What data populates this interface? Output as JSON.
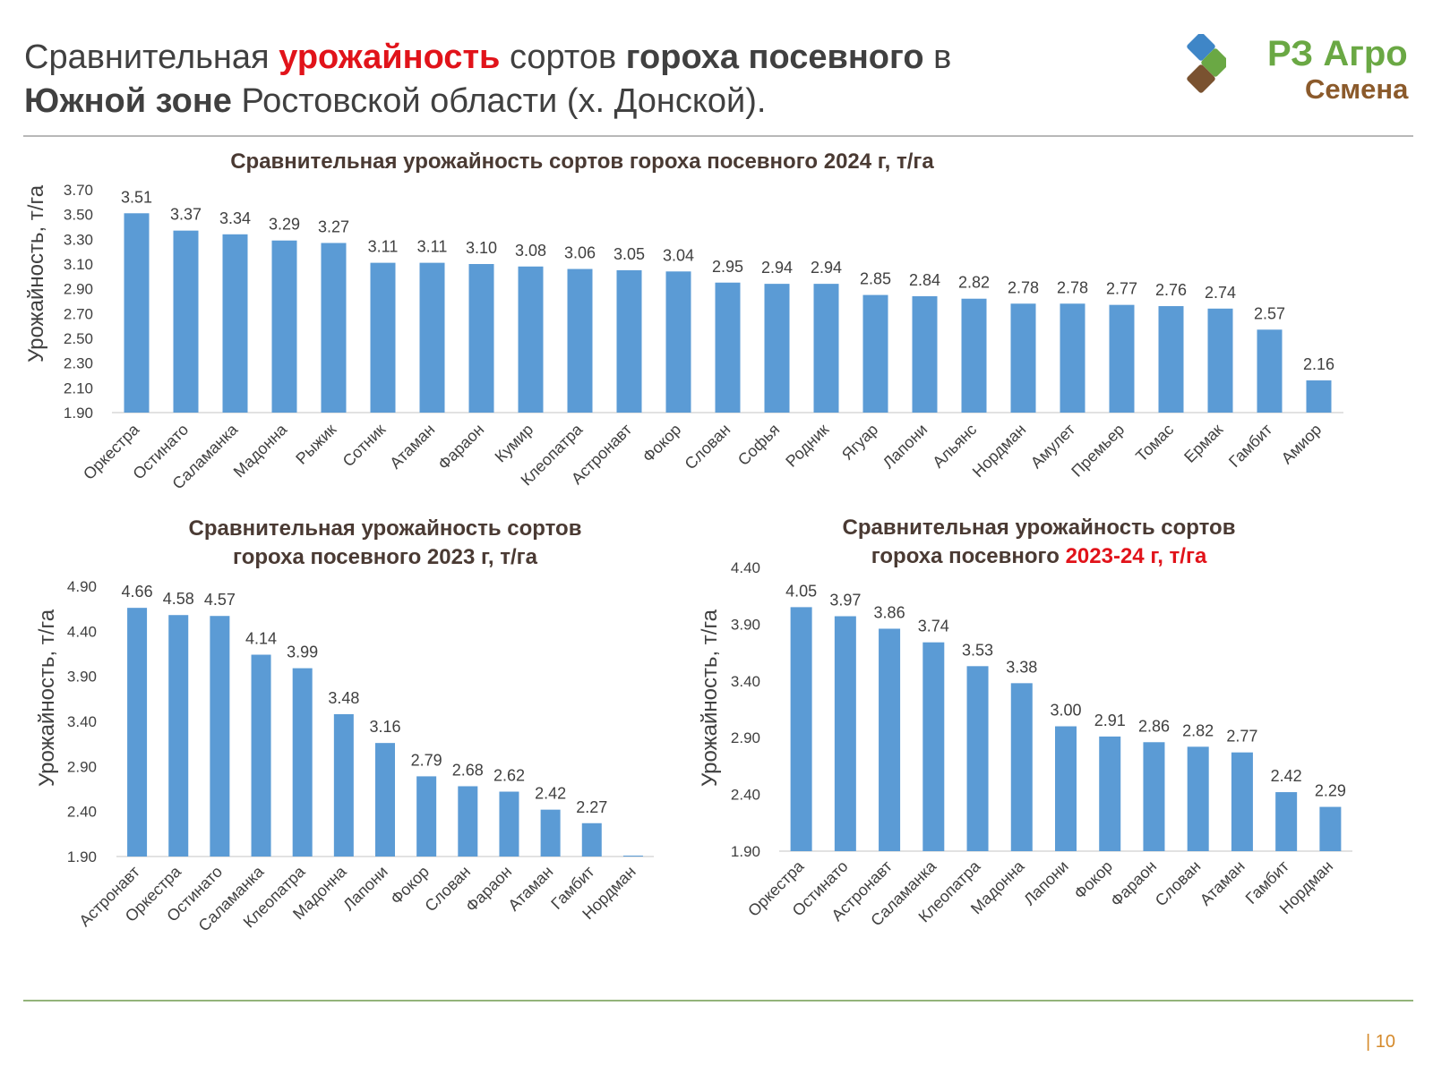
{
  "header": {
    "title_part1": "Сравнительная ",
    "title_highlight": "урожайность",
    "title_part2": " сортов ",
    "title_bold1": "гороха посевного",
    "title_part3": " в ",
    "title_bold2": "Южной зоне",
    "title_part4": " Ростовской области (х. Донской)."
  },
  "logo": {
    "line1": "РЗ Агро",
    "line2": "Семена",
    "icon": "diamond-squares-icon"
  },
  "page_number": "| 10",
  "colors": {
    "bar": "#5b9bd5",
    "accent_red": "#e1131a",
    "logo_green": "#6aa844",
    "logo_brown": "#8b5a2b",
    "logo_blue": "#3f86c7"
  },
  "chart_data": [
    {
      "type": "bar",
      "title": "Сравнительная урожайность сортов гороха посевного 2024 г, т/га",
      "title_highlight": "",
      "ylabel": "Урожайность, т/га",
      "ylim": [
        1.9,
        3.7
      ],
      "yticks": [
        "1.90",
        "2.10",
        "2.30",
        "2.50",
        "2.70",
        "2.90",
        "3.10",
        "3.30",
        "3.50",
        "3.70"
      ],
      "categories": [
        "Оркестра",
        "Остинато",
        "Саламанка",
        "Мадонна",
        "Рыжик",
        "Сотник",
        "Атаман",
        "Фараон",
        "Кумир",
        "Клеопатра",
        "Астронавт",
        "Фокор",
        "Слован",
        "Софья",
        "Родник",
        "Ягуар",
        "Лапони",
        "Альянс",
        "Нордман",
        "Амулет",
        "Премьер",
        "Томас",
        "Ермак",
        "Гамбит",
        "Амиор"
      ],
      "values": [
        3.51,
        3.37,
        3.34,
        3.29,
        3.27,
        3.11,
        3.11,
        3.1,
        3.08,
        3.06,
        3.05,
        3.04,
        2.95,
        2.94,
        2.94,
        2.85,
        2.84,
        2.82,
        2.78,
        2.78,
        2.77,
        2.76,
        2.74,
        2.57,
        2.16
      ],
      "value_labels": [
        "3.51",
        "3.37",
        "3.34",
        "3.29",
        "3.27",
        "3.11",
        "3.11",
        "3.10",
        "3.08",
        "3.06",
        "3.05",
        "3.04",
        "2.95",
        "2.94",
        "2.94",
        "2.85",
        "2.84",
        "2.82",
        "2.78",
        "2.78",
        "2.77",
        "2.76",
        "2.74",
        "2.57",
        "2.16"
      ]
    },
    {
      "type": "bar",
      "title": "Сравнительная урожайность сортов\nгороха посевного 2023 г, т/га",
      "title_highlight": "",
      "ylabel": "Урожайность, т/га",
      "ylim": [
        1.9,
        4.9
      ],
      "yticks": [
        "1.90",
        "2.40",
        "2.90",
        "3.40",
        "3.90",
        "4.40",
        "4.90"
      ],
      "categories": [
        "Астронавт",
        "Оркестра",
        "Остинато",
        "Саламанка",
        "Клеопатра",
        "Мадонна",
        "Лапони",
        "Фокор",
        "Слован",
        "Фараон",
        "Атаман",
        "Гамбит",
        "Нордман"
      ],
      "values": [
        4.66,
        4.58,
        4.57,
        4.14,
        3.99,
        3.48,
        3.16,
        2.79,
        2.68,
        2.62,
        2.42,
        2.27,
        1.9
      ],
      "value_labels": [
        "4.66",
        "4.58",
        "4.57",
        "4.14",
        "3.99",
        "3.48",
        "3.16",
        "2.79",
        "2.68",
        "2.62",
        "2.42",
        "2.27",
        ""
      ]
    },
    {
      "type": "bar",
      "title": "Сравнительная урожайность сортов\nгороха посевного ",
      "title_highlight": "2023-24 г, т/га",
      "ylabel": "Урожайность, т/га",
      "ylim": [
        1.9,
        4.4
      ],
      "yticks": [
        "1.90",
        "2.40",
        "2.90",
        "3.40",
        "3.90",
        "4.40"
      ],
      "categories": [
        "Оркестра",
        "Остинато",
        "Астронавт",
        "Саламанка",
        "Клеопатра",
        "Мадонна",
        "Лапони",
        "Фокор",
        "Фараон",
        "Слован",
        "Атаман",
        "Гамбит",
        "Нордман"
      ],
      "values": [
        4.05,
        3.97,
        3.86,
        3.74,
        3.53,
        3.38,
        3.0,
        2.91,
        2.86,
        2.82,
        2.77,
        2.42,
        2.29
      ],
      "value_labels": [
        "4.05",
        "3.97",
        "3.86",
        "3.74",
        "3.53",
        "3.38",
        "3.00",
        "2.91",
        "2.86",
        "2.82",
        "2.77",
        "2.42",
        "2.29"
      ]
    }
  ]
}
